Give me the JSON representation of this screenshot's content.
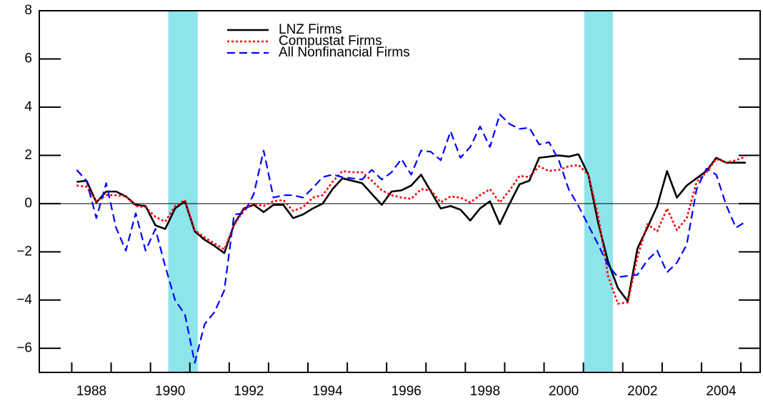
{
  "chart_data": {
    "type": "line",
    "x": [
      1987.625,
      1987.875,
      1988.125,
      1988.375,
      1988.625,
      1988.875,
      1989.125,
      1989.375,
      1989.625,
      1989.875,
      1990.125,
      1990.375,
      1990.625,
      1990.875,
      1991.125,
      1991.375,
      1991.625,
      1991.875,
      1992.125,
      1992.375,
      1992.625,
      1992.875,
      1993.125,
      1993.375,
      1993.625,
      1993.875,
      1994.125,
      1994.375,
      1994.625,
      1994.875,
      1995.125,
      1995.375,
      1995.625,
      1995.875,
      1996.125,
      1996.375,
      1996.625,
      1996.875,
      1997.125,
      1997.375,
      1997.625,
      1997.875,
      1998.125,
      1998.375,
      1998.625,
      1998.875,
      1999.125,
      1999.375,
      1999.625,
      1999.875,
      2000.125,
      2000.375,
      2000.625,
      2000.875,
      2001.125,
      2001.375,
      2001.625,
      2001.875,
      2002.125,
      2002.375,
      2002.625,
      2002.875,
      2003.125,
      2003.375,
      2003.625,
      2003.875,
      2004.125,
      2004.375,
      2004.625
    ],
    "series": [
      {
        "name": "LNZ Firms",
        "color": "#000000",
        "style": "solid",
        "values": [
          0.9,
          0.95,
          0.05,
          0.5,
          0.5,
          0.3,
          -0.05,
          -0.1,
          -0.9,
          -1.05,
          -0.2,
          0.1,
          -1.15,
          -1.5,
          -1.75,
          -2.05,
          -0.85,
          -0.2,
          -0.05,
          -0.35,
          -0.05,
          -0.05,
          -0.6,
          -0.45,
          -0.2,
          0.0,
          0.6,
          1.05,
          0.95,
          0.85,
          0.4,
          -0.05,
          0.5,
          0.55,
          0.75,
          1.2,
          0.5,
          -0.2,
          -0.1,
          -0.25,
          -0.7,
          -0.2,
          0.1,
          -0.85,
          0.0,
          0.8,
          0.95,
          1.9,
          1.95,
          2.0,
          1.95,
          2.05,
          1.2,
          -0.8,
          -2.4,
          -3.5,
          -4.05,
          -1.85,
          -1.0,
          -0.1,
          1.35,
          0.25,
          0.75,
          1.05,
          1.35,
          1.9,
          1.7,
          1.7,
          1.7
        ]
      },
      {
        "name": "Compustat Firms",
        "color": "#ff0000",
        "style": "dotted",
        "values": [
          0.75,
          0.7,
          0.1,
          0.35,
          0.35,
          0.3,
          -0.1,
          -0.15,
          -0.55,
          -0.75,
          -0.1,
          0.15,
          -1.1,
          -1.4,
          -1.65,
          -1.9,
          -0.9,
          -0.25,
          0.0,
          -0.1,
          0.1,
          0.15,
          -0.3,
          -0.15,
          0.25,
          0.35,
          0.9,
          1.35,
          1.3,
          1.3,
          0.95,
          0.55,
          0.35,
          0.25,
          0.2,
          0.6,
          0.55,
          0.05,
          0.3,
          0.25,
          0.05,
          0.35,
          0.6,
          0.05,
          0.55,
          1.15,
          1.1,
          1.55,
          1.35,
          1.4,
          1.55,
          1.6,
          1.2,
          -0.5,
          -3.0,
          -4.15,
          -4.1,
          -2.2,
          -0.85,
          -1.15,
          -0.2,
          -1.1,
          -0.6,
          0.9,
          1.3,
          1.85,
          1.7,
          1.8,
          1.95
        ]
      },
      {
        "name": "All Nonfinancial Firms",
        "color": "#0000ff",
        "style": "dashed",
        "values": [
          1.4,
          0.95,
          -0.6,
          0.85,
          -1.0,
          -1.95,
          -0.4,
          -1.95,
          -1.05,
          -2.6,
          -4.0,
          -4.6,
          -6.6,
          -5.0,
          -4.5,
          -3.6,
          -0.45,
          -0.4,
          0.4,
          2.2,
          0.25,
          0.35,
          0.35,
          0.25,
          0.65,
          1.1,
          1.2,
          1.1,
          1.05,
          1.0,
          1.4,
          1.0,
          1.3,
          1.85,
          1.2,
          2.2,
          2.15,
          1.8,
          3.0,
          1.9,
          2.35,
          3.2,
          2.35,
          3.7,
          3.3,
          3.1,
          3.15,
          2.45,
          2.55,
          1.8,
          0.6,
          -0.1,
          -0.9,
          -1.7,
          -2.55,
          -3.05,
          -3.0,
          -2.95,
          -2.35,
          -1.95,
          -2.85,
          -2.45,
          -1.7,
          0.6,
          1.45,
          1.2,
          -0.05,
          -1.0,
          -0.75
        ]
      }
    ],
    "xlim": [
      1986.675,
      2004.99
    ],
    "xticks": [
      1988,
      1990,
      1992,
      1994,
      1996,
      1998,
      2000,
      2002,
      2004
    ],
    "xminor_ticks": [
      1987.5,
      1988.5,
      1989.5,
      1990.5,
      1991.5,
      1992.5,
      1993.5,
      1994.5,
      1995.5,
      1996.5,
      1997.5,
      1998.5,
      1999.5,
      2000.5,
      2001.5,
      2002.5,
      2003.5,
      2004.5
    ],
    "ylim": [
      -7,
      8
    ],
    "yticks": [
      {
        "value": -6,
        "label": "−6"
      },
      {
        "value": -4,
        "label": "−4"
      },
      {
        "value": -2,
        "label": "−2"
      },
      0,
      2,
      4,
      6,
      8
    ],
    "hline": 0,
    "shaded_periods": [
      [
        1989.95,
        1990.7
      ],
      [
        2000.52,
        2001.25
      ]
    ],
    "shade_color": "#8ee4eb",
    "legend": "top-left"
  }
}
